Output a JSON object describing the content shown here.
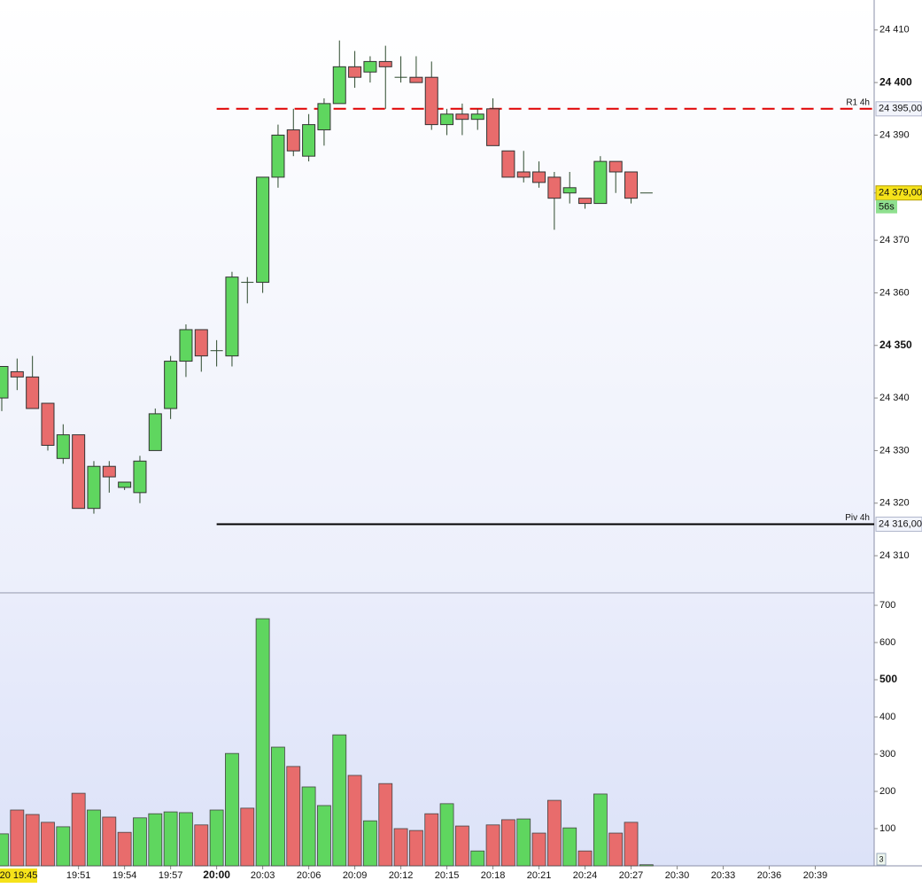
{
  "chart_data": [
    {
      "type": "candlestick",
      "categories": [
        "19:46",
        "19:47",
        "19:48",
        "19:49",
        "19:50",
        "19:51",
        "19:52",
        "19:53",
        "19:54",
        "19:55",
        "19:56",
        "19:57",
        "19:58",
        "19:59",
        "20:00",
        "20:01",
        "20:02",
        "20:03",
        "20:04",
        "20:05",
        "20:06",
        "20:07",
        "20:08",
        "20:09",
        "20:10",
        "20:11",
        "20:12",
        "20:13",
        "20:14",
        "20:15",
        "20:16",
        "20:17",
        "20:18",
        "20:19",
        "20:20",
        "20:21",
        "20:22",
        "20:23",
        "20:24",
        "20:25",
        "20:26",
        "20:27",
        "20:28"
      ],
      "open": [
        24340,
        24345,
        24344,
        24339,
        24328.5,
        24333,
        24319,
        24327,
        24323,
        24322,
        24330,
        24338,
        24347,
        24353,
        24349,
        24348,
        24362,
        24362,
        24382,
        24391,
        24386,
        24391,
        24396,
        24403,
        24402,
        24404,
        24401,
        24401,
        24401,
        24392,
        24394,
        24393,
        24395,
        24387,
        24383,
        24383,
        24382,
        24379,
        24378,
        24377,
        24385,
        24383,
        24379
      ],
      "high": [
        24346,
        24347.5,
        24348,
        24339,
        24335,
        24333,
        24328,
        24328,
        24324,
        24329,
        24338,
        24348,
        24354,
        24353,
        24351,
        24364,
        24363,
        24382,
        24392,
        24395,
        24394,
        24397,
        24408,
        24406,
        24405,
        24407,
        24405,
        24405,
        24404,
        24395,
        24396,
        24395,
        24397,
        24387,
        24387,
        24385,
        24383,
        24383,
        24378,
        24386,
        24385,
        24383,
        24379
      ],
      "low": [
        24337.5,
        24341.5,
        24338,
        24330,
        24327.5,
        24319,
        24318,
        24322,
        24322.5,
        24320,
        24330,
        24336,
        24344,
        24345,
        24346,
        24346,
        24358,
        24360,
        24380,
        24386,
        24385,
        24388,
        24396,
        24399,
        24400,
        24395,
        24400,
        24400,
        24391,
        24390,
        24390,
        24391,
        24388,
        24382,
        24381,
        24380,
        24372,
        24377,
        24376,
        24377,
        24379,
        24377,
        24379
      ],
      "close": [
        24346,
        24344,
        24338,
        24331,
        24333,
        24319,
        24327,
        24325,
        24324,
        24328,
        24337,
        24347,
        24353,
        24348,
        24349,
        24363,
        24362,
        24382,
        24390,
        24387,
        24392,
        24396,
        24403,
        24401,
        24404,
        24403,
        24401,
        24400,
        24392,
        24394,
        24393,
        24394,
        24388,
        24382,
        24382,
        24381,
        24378,
        24380,
        24377,
        24385,
        24383,
        24378,
        24379
      ],
      "up_color": "#5fd65f",
      "down_color": "#e86c6c",
      "ylim": [
        24303.1,
        24415.7
      ],
      "yticks": [
        {
          "value": 24410,
          "label": "24 410"
        },
        {
          "value": 24400,
          "label": "24 400",
          "bold": true
        },
        {
          "value": 24390,
          "label": "24 390"
        },
        {
          "value": 24370,
          "label": "24 370"
        },
        {
          "value": 24360,
          "label": "24 360"
        },
        {
          "value": 24350,
          "label": "24 350",
          "bold": true
        },
        {
          "value": 24340,
          "label": "24 340"
        },
        {
          "value": 24330,
          "label": "24 330"
        },
        {
          "value": 24320,
          "label": "24 320"
        },
        {
          "value": 24310,
          "label": "24 310"
        }
      ],
      "levels": [
        {
          "name": "R1 4h",
          "value": 24395,
          "value_label": "24 395,00",
          "color": "#e00000",
          "style": "dashed"
        },
        {
          "name": "Piv 4h",
          "value": 24316,
          "value_label": "24 316,00",
          "color": "#000000",
          "style": "solid"
        }
      ],
      "last_price": {
        "value": 24379,
        "label": "24 379,00"
      },
      "timer": "56s",
      "cursor_label": "20 19:45",
      "xticks": [
        "19:51",
        "19:54",
        "19:57",
        "20:00",
        "20:03",
        "20:06",
        "20:09",
        "20:12",
        "20:15",
        "20:18",
        "20:21",
        "20:24",
        "20:27",
        "20:30",
        "20:33",
        "20:36",
        "20:39"
      ]
    },
    {
      "type": "bar",
      "values": [
        86,
        150,
        138,
        117,
        105,
        195,
        150,
        131,
        90,
        129,
        140,
        145,
        143,
        110,
        150,
        302,
        155,
        664,
        319,
        267,
        212,
        162,
        352,
        243,
        121,
        221,
        100,
        95,
        140,
        167,
        107,
        40,
        110,
        124,
        126,
        88,
        176,
        102,
        40,
        193,
        88,
        117,
        3
      ],
      "colors": [
        "#5fd65f",
        "#e86c6c",
        "#e86c6c",
        "#e86c6c",
        "#5fd65f",
        "#e86c6c",
        "#5fd65f",
        "#e86c6c",
        "#e86c6c",
        "#5fd65f",
        "#5fd65f",
        "#5fd65f",
        "#5fd65f",
        "#e86c6c",
        "#5fd65f",
        "#5fd65f",
        "#e86c6c",
        "#5fd65f",
        "#5fd65f",
        "#e86c6c",
        "#5fd65f",
        "#5fd65f",
        "#5fd65f",
        "#e86c6c",
        "#5fd65f",
        "#e86c6c",
        "#e86c6c",
        "#e86c6c",
        "#e86c6c",
        "#5fd65f",
        "#e86c6c",
        "#5fd65f",
        "#e86c6c",
        "#e86c6c",
        "#5fd65f",
        "#e86c6c",
        "#e86c6c",
        "#5fd65f",
        "#e86c6c",
        "#5fd65f",
        "#e86c6c",
        "#e86c6c",
        "#5fd65f"
      ],
      "last_label": "3",
      "ylim": [
        0,
        731
      ],
      "yticks": [
        100,
        200,
        300,
        400,
        {
          "value": 500,
          "label": "500",
          "bold": true
        },
        600,
        700
      ]
    }
  ]
}
